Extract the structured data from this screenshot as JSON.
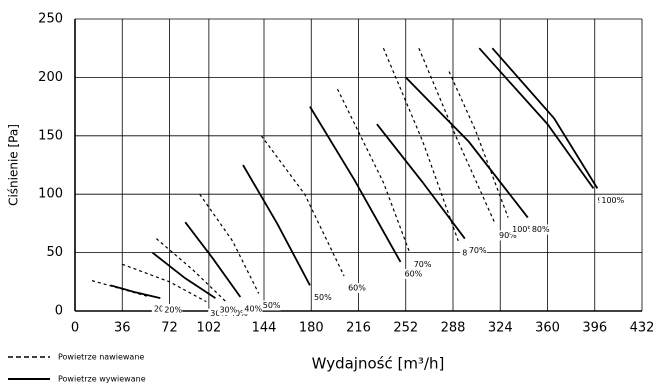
{
  "chart_data": {
    "type": "line",
    "xlabel": "Wydajność [m³/h]",
    "ylabel": "Ciśnienie [Pa]",
    "xlim": [
      0,
      432
    ],
    "xticks": [
      0,
      36,
      72,
      102,
      144,
      180,
      216,
      252,
      288,
      324,
      360,
      396,
      432
    ],
    "ylim": [
      0,
      250
    ],
    "yticks": [
      0,
      50,
      100,
      150,
      200,
      250
    ],
    "grid": true,
    "legend": [
      {
        "label": "Powietrze nawiewane",
        "dash": true
      },
      {
        "label": "Powietrze wywiewane",
        "dash": false
      }
    ],
    "series": [
      {
        "name": "20%",
        "dash": true,
        "x": [
          13,
          35,
          57
        ],
        "values": [
          26,
          19,
          12
        ]
      },
      {
        "name": "30%",
        "dash": true,
        "x": [
          36,
          72,
          100
        ],
        "values": [
          40,
          25,
          8
        ]
      },
      {
        "name": "40%",
        "dash": true,
        "x": [
          62,
          90,
          115
        ],
        "values": [
          62,
          35,
          8
        ]
      },
      {
        "name": "50%",
        "dash": true,
        "x": [
          95,
          120,
          140
        ],
        "values": [
          100,
          60,
          15
        ]
      },
      {
        "name": "60%",
        "dash": true,
        "x": [
          142,
          175,
          205
        ],
        "values": [
          150,
          100,
          30
        ]
      },
      {
        "name": "70%",
        "dash": true,
        "x": [
          200,
          235,
          255
        ],
        "values": [
          190,
          110,
          50
        ]
      },
      {
        "name": "80%",
        "dash": true,
        "x": [
          235,
          265,
          292
        ],
        "values": [
          225,
          145,
          60
        ]
      },
      {
        "name": "90%",
        "dash": true,
        "x": [
          262,
          290,
          320
        ],
        "values": [
          225,
          150,
          75
        ]
      },
      {
        "name": "100%",
        "dash": true,
        "x": [
          285,
          305,
          330
        ],
        "values": [
          205,
          155,
          80
        ]
      },
      {
        "name": "20%",
        "dash": false,
        "x": [
          27,
          46,
          65
        ],
        "values": [
          22,
          16,
          11
        ]
      },
      {
        "name": "30%",
        "dash": false,
        "x": [
          59,
          84,
          107
        ],
        "values": [
          50,
          28,
          11
        ]
      },
      {
        "name": "40%",
        "dash": false,
        "x": [
          84,
          105,
          126
        ],
        "values": [
          76,
          45,
          12
        ]
      },
      {
        "name": "50%",
        "dash": false,
        "x": [
          128,
          154,
          179
        ],
        "values": [
          125,
          75,
          22
        ]
      },
      {
        "name": "60%",
        "dash": false,
        "x": [
          179,
          213,
          248
        ],
        "values": [
          175,
          112,
          42
        ]
      },
      {
        "name": "70%",
        "dash": false,
        "x": [
          230,
          265,
          297
        ],
        "values": [
          160,
          110,
          62
        ]
      },
      {
        "name": "80%",
        "dash": false,
        "x": [
          252,
          300,
          345
        ],
        "values": [
          200,
          145,
          80
        ]
      },
      {
        "name": "90%",
        "dash": false,
        "x": [
          308,
          360,
          395
        ],
        "values": [
          225,
          160,
          105
        ]
      },
      {
        "name": "100%",
        "dash": false,
        "x": [
          318,
          365,
          398
        ],
        "values": [
          225,
          165,
          105
        ]
      }
    ]
  }
}
